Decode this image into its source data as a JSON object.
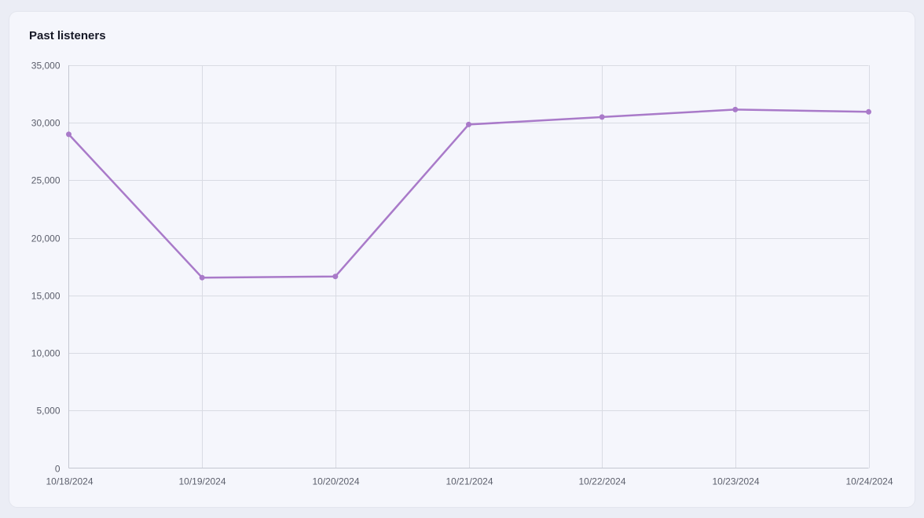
{
  "card": {
    "title": "Past listeners"
  },
  "chart_data": {
    "type": "line",
    "x": [
      "10/18/2024",
      "10/19/2024",
      "10/20/2024",
      "10/21/2024",
      "10/22/2024",
      "10/23/2024",
      "10/24/2024"
    ],
    "series": [
      {
        "values": [
          29000,
          16550,
          16650,
          29850,
          30500,
          31150,
          30950
        ]
      }
    ],
    "ylim": [
      0,
      35000
    ],
    "yticks": [
      0,
      5000,
      10000,
      15000,
      20000,
      25000,
      30000,
      35000
    ],
    "grid": true,
    "color": "#a97ac9"
  }
}
